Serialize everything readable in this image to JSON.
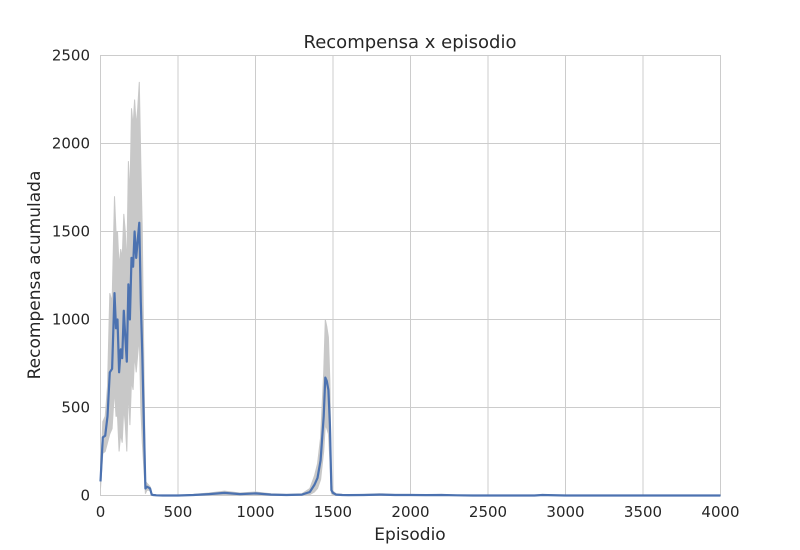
{
  "chart_data": {
    "type": "line",
    "title": "Recompensa x episodio",
    "xlabel": "Episodio",
    "ylabel": "Recompensa acumulada",
    "xlim": [
      0,
      4000
    ],
    "ylim": [
      0,
      2500
    ],
    "xticks": [
      0,
      500,
      1000,
      1500,
      2000,
      2500,
      3000,
      3500,
      4000
    ],
    "yticks": [
      0,
      500,
      1000,
      1500,
      2000,
      2500
    ],
    "grid": true,
    "colors": {
      "mean_line": "#4c72b0",
      "band": "#c8c8c8"
    },
    "series": [
      {
        "x": [
          0,
          15,
          30,
          45,
          60,
          75,
          90,
          100,
          110,
          120,
          130,
          140,
          150,
          160,
          170,
          180,
          190,
          200,
          210,
          220,
          230,
          240,
          250,
          260,
          270,
          280,
          290,
          300,
          310,
          320,
          330,
          340,
          350,
          360,
          400,
          500,
          600,
          700,
          800,
          900,
          1000,
          1100,
          1200,
          1300,
          1350,
          1380,
          1400,
          1420,
          1440,
          1450,
          1460,
          1470,
          1480,
          1490,
          1500,
          1520,
          1560,
          1600,
          1700,
          1800,
          1900,
          2000,
          2100,
          2200,
          2300,
          2400,
          2500,
          2800,
          2850,
          3000,
          3500,
          4000
        ],
        "values": [
          80,
          330,
          340,
          450,
          700,
          720,
          1150,
          950,
          1000,
          700,
          830,
          780,
          1050,
          900,
          760,
          1200,
          1000,
          1350,
          1300,
          1500,
          1350,
          1450,
          1550,
          1100,
          800,
          400,
          40,
          50,
          45,
          40,
          5,
          3,
          2,
          1,
          0,
          0,
          3,
          8,
          15,
          8,
          12,
          5,
          3,
          5,
          20,
          60,
          100,
          200,
          450,
          670,
          650,
          600,
          400,
          30,
          15,
          5,
          3,
          2,
          3,
          5,
          3,
          3,
          2,
          3,
          1,
          0,
          0,
          0,
          3,
          0,
          0,
          0
        ],
        "upper": [
          120,
          420,
          450,
          620,
          1150,
          1100,
          1700,
          1500,
          1500,
          1300,
          1400,
          1350,
          1600,
          1500,
          1300,
          1900,
          1700,
          2200,
          2100,
          2250,
          2100,
          2200,
          2350,
          1900,
          1500,
          750,
          80,
          70,
          60,
          50,
          10,
          5,
          4,
          2,
          0,
          0,
          6,
          14,
          25,
          14,
          20,
          10,
          6,
          10,
          40,
          110,
          180,
          330,
          700,
          1000,
          960,
          900,
          650,
          60,
          25,
          10,
          6,
          4,
          6,
          10,
          6,
          6,
          4,
          6,
          2,
          0,
          0,
          0,
          6,
          0,
          0,
          0
        ],
        "lower": [
          40,
          240,
          250,
          300,
          350,
          380,
          600,
          450,
          450,
          250,
          350,
          300,
          500,
          400,
          250,
          600,
          400,
          650,
          600,
          800,
          700,
          800,
          900,
          500,
          300,
          150,
          10,
          30,
          30,
          30,
          1,
          1,
          0,
          0,
          0,
          0,
          0,
          2,
          5,
          2,
          4,
          1,
          0,
          1,
          5,
          20,
          40,
          90,
          250,
          400,
          380,
          350,
          200,
          10,
          5,
          0,
          0,
          0,
          0,
          1,
          0,
          0,
          0,
          0,
          0,
          0,
          0,
          0,
          0,
          0,
          0,
          0
        ]
      }
    ]
  }
}
